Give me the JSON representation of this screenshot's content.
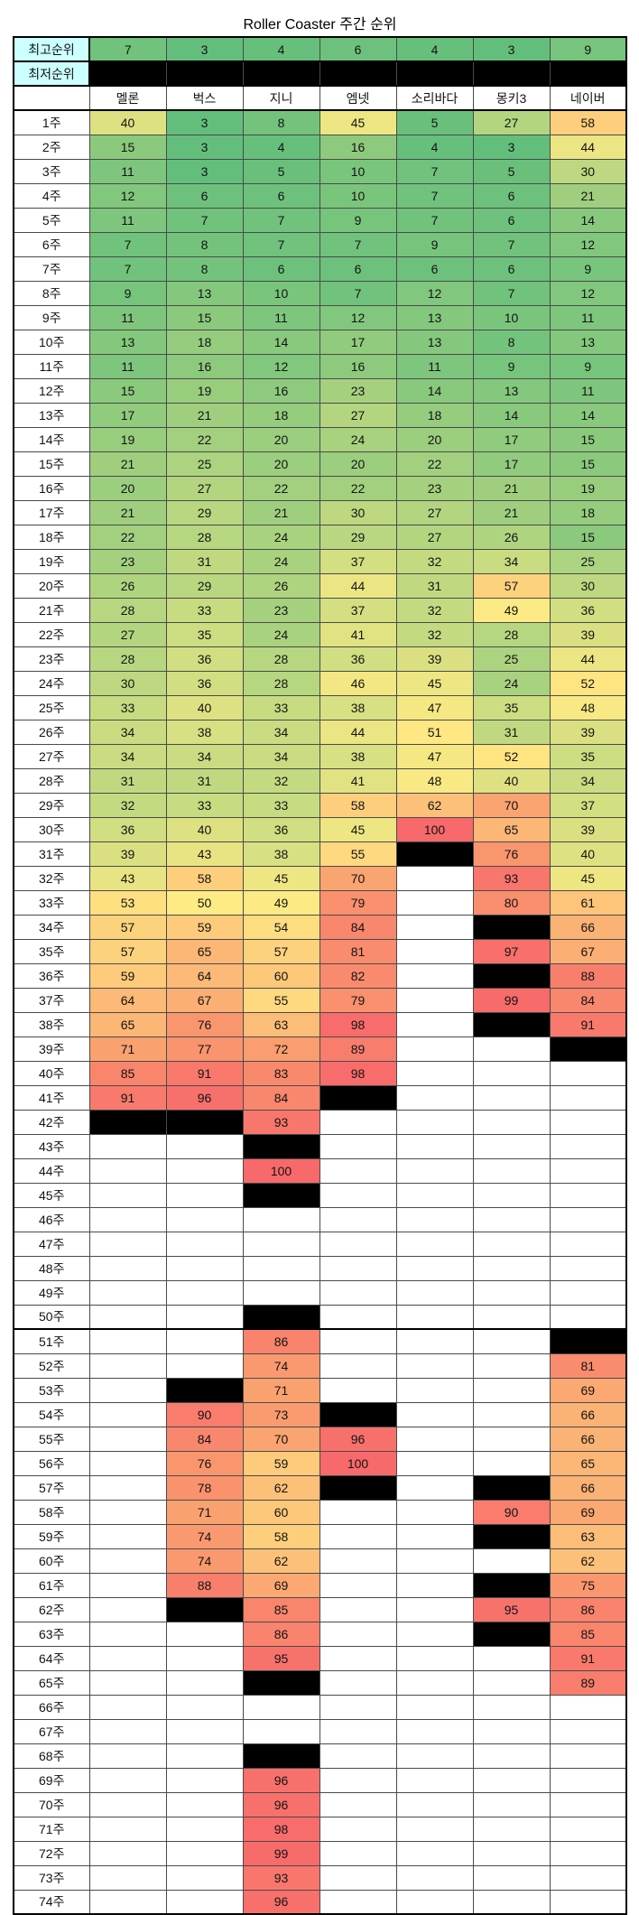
{
  "title": "Roller Coaster 주간 순위",
  "chart_data": {
    "type": "heatmap",
    "title": "Roller Coaster 주간 순위",
    "columns": [
      "멜론",
      "벅스",
      "지니",
      "엠넷",
      "소리바다",
      "몽키3",
      "네이버"
    ],
    "summary_rows": [
      {
        "label": "최고순위",
        "values": [
          7,
          3,
          4,
          6,
          4,
          3,
          9
        ]
      },
      {
        "label": "최저순위",
        "values": [
          "X",
          "X",
          "X",
          "X",
          "X",
          "X",
          "X"
        ]
      }
    ],
    "row_labels": [
      "1주",
      "2주",
      "3주",
      "4주",
      "5주",
      "6주",
      "7주",
      "8주",
      "9주",
      "10주",
      "11주",
      "12주",
      "13주",
      "14주",
      "15주",
      "16주",
      "17주",
      "18주",
      "19주",
      "20주",
      "21주",
      "22주",
      "23주",
      "24주",
      "25주",
      "26주",
      "27주",
      "28주",
      "29주",
      "30주",
      "31주",
      "32주",
      "33주",
      "34주",
      "35주",
      "36주",
      "37주",
      "38주",
      "39주",
      "40주",
      "41주",
      "42주",
      "43주",
      "44주",
      "45주",
      "46주",
      "47주",
      "48주",
      "49주",
      "50주",
      "51주",
      "52주",
      "53주",
      "54주",
      "55주",
      "56주",
      "57주",
      "58주",
      "59주",
      "60주",
      "61주",
      "62주",
      "63주",
      "64주",
      "65주",
      "66주",
      "67주",
      "68주",
      "69주",
      "70주",
      "71주",
      "72주",
      "73주",
      "74주"
    ],
    "values": [
      [
        40,
        3,
        8,
        45,
        5,
        27,
        58
      ],
      [
        15,
        3,
        4,
        16,
        4,
        3,
        44
      ],
      [
        11,
        3,
        5,
        10,
        7,
        5,
        30
      ],
      [
        12,
        6,
        6,
        10,
        7,
        6,
        21
      ],
      [
        11,
        7,
        7,
        9,
        7,
        6,
        14
      ],
      [
        7,
        8,
        7,
        7,
        9,
        7,
        12
      ],
      [
        7,
        8,
        6,
        6,
        6,
        6,
        9
      ],
      [
        9,
        13,
        10,
        7,
        12,
        7,
        12
      ],
      [
        11,
        15,
        11,
        12,
        13,
        10,
        11
      ],
      [
        13,
        18,
        14,
        17,
        13,
        8,
        13
      ],
      [
        11,
        16,
        12,
        16,
        11,
        9,
        9
      ],
      [
        15,
        19,
        16,
        23,
        14,
        13,
        11
      ],
      [
        17,
        21,
        18,
        27,
        18,
        14,
        14
      ],
      [
        19,
        22,
        20,
        24,
        20,
        17,
        15
      ],
      [
        21,
        25,
        20,
        20,
        22,
        17,
        15
      ],
      [
        20,
        27,
        22,
        22,
        23,
        21,
        19
      ],
      [
        21,
        29,
        21,
        30,
        27,
        21,
        18
      ],
      [
        22,
        28,
        24,
        29,
        27,
        26,
        15
      ],
      [
        23,
        31,
        24,
        37,
        32,
        34,
        25
      ],
      [
        26,
        29,
        26,
        44,
        31,
        57,
        30
      ],
      [
        28,
        33,
        23,
        37,
        32,
        49,
        36
      ],
      [
        27,
        35,
        24,
        41,
        32,
        28,
        39
      ],
      [
        28,
        36,
        28,
        36,
        39,
        25,
        44
      ],
      [
        30,
        36,
        28,
        46,
        45,
        24,
        52
      ],
      [
        33,
        40,
        33,
        38,
        47,
        35,
        48
      ],
      [
        34,
        38,
        34,
        44,
        51,
        31,
        39
      ],
      [
        34,
        34,
        34,
        38,
        47,
        52,
        35
      ],
      [
        31,
        31,
        32,
        41,
        48,
        40,
        34
      ],
      [
        32,
        33,
        33,
        58,
        62,
        70,
        37
      ],
      [
        36,
        40,
        36,
        45,
        100,
        65,
        39
      ],
      [
        39,
        43,
        38,
        55,
        "X",
        76,
        40
      ],
      [
        43,
        58,
        45,
        70,
        null,
        93,
        45
      ],
      [
        53,
        50,
        49,
        79,
        null,
        80,
        61
      ],
      [
        57,
        59,
        54,
        84,
        null,
        "X",
        66
      ],
      [
        57,
        65,
        57,
        81,
        null,
        97,
        67
      ],
      [
        59,
        64,
        60,
        82,
        null,
        "X",
        88
      ],
      [
        64,
        67,
        55,
        79,
        null,
        99,
        84
      ],
      [
        65,
        76,
        63,
        98,
        null,
        "X",
        91
      ],
      [
        71,
        77,
        72,
        89,
        null,
        null,
        "X"
      ],
      [
        85,
        91,
        83,
        98,
        null,
        null,
        null
      ],
      [
        91,
        96,
        84,
        "X",
        null,
        null,
        null
      ],
      [
        "X",
        "X",
        93,
        null,
        null,
        null,
        null
      ],
      [
        null,
        null,
        "X",
        null,
        null,
        null,
        null
      ],
      [
        null,
        null,
        100,
        null,
        null,
        null,
        null
      ],
      [
        null,
        null,
        "X",
        null,
        null,
        null,
        null
      ],
      [
        null,
        null,
        null,
        null,
        null,
        null,
        null
      ],
      [
        null,
        null,
        null,
        null,
        null,
        null,
        null
      ],
      [
        null,
        null,
        null,
        null,
        null,
        null,
        null
      ],
      [
        null,
        null,
        null,
        null,
        null,
        null,
        null
      ],
      [
        null,
        null,
        "X",
        null,
        null,
        null,
        null
      ],
      [
        null,
        null,
        86,
        null,
        null,
        null,
        "X"
      ],
      [
        null,
        null,
        74,
        null,
        null,
        null,
        81
      ],
      [
        null,
        "X",
        71,
        null,
        null,
        null,
        69
      ],
      [
        null,
        90,
        73,
        "X",
        null,
        null,
        66
      ],
      [
        null,
        84,
        70,
        96,
        null,
        null,
        66
      ],
      [
        null,
        76,
        59,
        100,
        null,
        null,
        65
      ],
      [
        null,
        78,
        62,
        "X",
        null,
        "X",
        66
      ],
      [
        null,
        71,
        60,
        null,
        null,
        90,
        69
      ],
      [
        null,
        74,
        58,
        null,
        null,
        "X",
        63
      ],
      [
        null,
        74,
        62,
        null,
        null,
        null,
        62
      ],
      [
        null,
        88,
        69,
        null,
        null,
        "X",
        75
      ],
      [
        null,
        "X",
        85,
        null,
        null,
        95,
        86
      ],
      [
        null,
        null,
        86,
        null,
        null,
        "X",
        85
      ],
      [
        null,
        null,
        95,
        null,
        null,
        null,
        91
      ],
      [
        null,
        null,
        "X",
        null,
        null,
        null,
        89
      ],
      [
        null,
        null,
        null,
        null,
        null,
        null,
        null
      ],
      [
        null,
        null,
        null,
        null,
        null,
        null,
        null
      ],
      [
        null,
        null,
        "X",
        null,
        null,
        null,
        null
      ],
      [
        null,
        null,
        96,
        null,
        null,
        null,
        null
      ],
      [
        null,
        null,
        96,
        null,
        null,
        null,
        null
      ],
      [
        null,
        null,
        98,
        null,
        null,
        null,
        null
      ],
      [
        null,
        null,
        99,
        null,
        null,
        null,
        null
      ],
      [
        null,
        null,
        93,
        null,
        null,
        null,
        null
      ],
      [
        null,
        null,
        96,
        null,
        null,
        null,
        null
      ]
    ],
    "missing_marker": "X",
    "color_scale": {
      "stops": [
        [
          3,
          "#63BE7B"
        ],
        [
          50,
          "#FFEB84"
        ],
        [
          72,
          "#FA9D6F"
        ],
        [
          100,
          "#F8696B"
        ]
      ],
      "black_cell": "#000000",
      "empty_cell": "#FFFFFF",
      "label_cell_bg": "#CCFFFF"
    }
  }
}
